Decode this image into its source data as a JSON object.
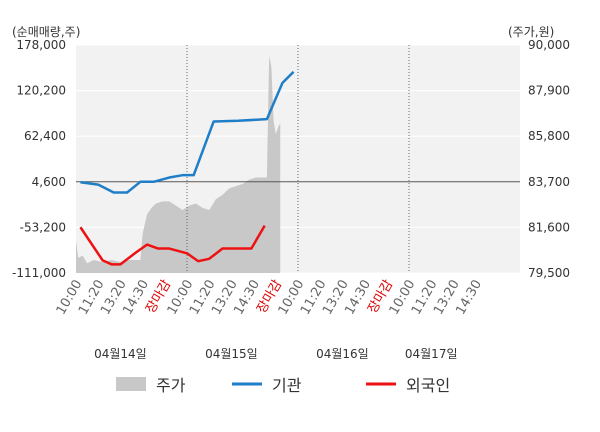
{
  "chart_data": {
    "type": "line",
    "left_axis_label": "(순매매량,주)",
    "right_axis_label": "(주가,원)",
    "left_ticks": [
      "178,000",
      "120,200",
      "62,400",
      "4,600",
      "-53,200",
      "-111,000"
    ],
    "left_range": [
      -111000,
      178000
    ],
    "right_ticks": [
      "90,000",
      "87,900",
      "85,800",
      "83,700",
      "81,600",
      "79,500"
    ],
    "right_range": [
      79500,
      90000
    ],
    "reference_line": {
      "y": 4600
    },
    "x_slots": 20,
    "x_ticks": [
      {
        "slot": 0,
        "label": "10:00",
        "color": "#666666"
      },
      {
        "slot": 1,
        "label": "11:20",
        "color": "#666666"
      },
      {
        "slot": 2,
        "label": "13:20",
        "color": "#666666"
      },
      {
        "slot": 3,
        "label": "14:30",
        "color": "#666666"
      },
      {
        "slot": 4,
        "label": "장마감",
        "color": "#dd0000"
      },
      {
        "slot": 5,
        "label": "10:00",
        "color": "#666666"
      },
      {
        "slot": 6,
        "label": "11:20",
        "color": "#666666"
      },
      {
        "slot": 7,
        "label": "13:20",
        "color": "#666666"
      },
      {
        "slot": 8,
        "label": "14:30",
        "color": "#666666"
      },
      {
        "slot": 9,
        "label": "장마감",
        "color": "#dd0000"
      },
      {
        "slot": 10,
        "label": "10:00",
        "color": "#666666"
      },
      {
        "slot": 11,
        "label": "11:20",
        "color": "#666666"
      },
      {
        "slot": 12,
        "label": "13:20",
        "color": "#666666"
      },
      {
        "slot": 13,
        "label": "14:30",
        "color": "#666666"
      },
      {
        "slot": 14,
        "label": "장마감",
        "color": "#dd0000"
      },
      {
        "slot": 15,
        "label": "10:00",
        "color": "#666666"
      },
      {
        "slot": 16,
        "label": "11:20",
        "color": "#666666"
      },
      {
        "slot": 17,
        "label": "13:20",
        "color": "#666666"
      },
      {
        "slot": 18,
        "label": "14:30",
        "color": "#666666"
      }
    ],
    "day_boundaries": [
      5,
      10,
      15
    ],
    "dates": [
      {
        "label": "04월14일",
        "slot": 2
      },
      {
        "label": "04월15일",
        "slot": 7
      },
      {
        "label": "04월16일",
        "slot": 12
      },
      {
        "label": "04월17일",
        "slot": 16
      }
    ],
    "series": [
      {
        "name": "기관",
        "color": "#1f7ec8",
        "axis": "left",
        "points": [
          [
            0.2,
            4000
          ],
          [
            1.0,
            1000
          ],
          [
            1.7,
            -9000
          ],
          [
            2.3,
            -9000
          ],
          [
            2.9,
            4600
          ],
          [
            3.5,
            4600
          ],
          [
            4.2,
            10000
          ],
          [
            4.8,
            13000
          ],
          [
            5.3,
            13000
          ],
          [
            6.2,
            81000
          ],
          [
            7.3,
            82000
          ],
          [
            8.6,
            84000
          ],
          [
            9.3,
            130000
          ],
          [
            9.8,
            144000
          ]
        ]
      },
      {
        "name": "외국인",
        "color": "#ee1111",
        "axis": "left",
        "points": [
          [
            0.2,
            -53000
          ],
          [
            1.2,
            -95000
          ],
          [
            1.6,
            -100000
          ],
          [
            2.0,
            -100000
          ],
          [
            2.7,
            -85000
          ],
          [
            3.2,
            -75000
          ],
          [
            3.7,
            -80000
          ],
          [
            4.2,
            -80000
          ],
          [
            5.0,
            -86000
          ],
          [
            5.5,
            -96000
          ],
          [
            6.0,
            -93000
          ],
          [
            6.6,
            -80000
          ],
          [
            7.5,
            -80000
          ],
          [
            7.9,
            -80000
          ],
          [
            8.5,
            -51000
          ]
        ]
      },
      {
        "name": "주가",
        "color": "#c8c8c8",
        "axis": "right",
        "type": "area",
        "points": [
          [
            0.0,
            81000
          ],
          [
            0.1,
            80200
          ],
          [
            0.3,
            80300
          ],
          [
            0.5,
            79950
          ],
          [
            0.8,
            80100
          ],
          [
            1.2,
            80000
          ],
          [
            1.6,
            80100
          ],
          [
            2.0,
            80000
          ],
          [
            2.4,
            80100
          ],
          [
            2.8,
            80100
          ],
          [
            2.9,
            80100
          ],
          [
            3.0,
            81300
          ],
          [
            3.2,
            82200
          ],
          [
            3.4,
            82500
          ],
          [
            3.6,
            82700
          ],
          [
            3.9,
            82800
          ],
          [
            4.2,
            82800
          ],
          [
            4.5,
            82600
          ],
          [
            4.8,
            82400
          ],
          [
            5.1,
            82600
          ],
          [
            5.4,
            82700
          ],
          [
            5.7,
            82500
          ],
          [
            6.0,
            82400
          ],
          [
            6.3,
            82900
          ],
          [
            6.6,
            83100
          ],
          [
            6.9,
            83400
          ],
          [
            7.2,
            83500
          ],
          [
            7.5,
            83600
          ],
          [
            7.8,
            83800
          ],
          [
            8.1,
            83900
          ],
          [
            8.4,
            83900
          ],
          [
            8.6,
            83900
          ],
          [
            8.7,
            89500
          ],
          [
            8.8,
            89000
          ],
          [
            8.9,
            86500
          ],
          [
            9.0,
            85900
          ],
          [
            9.1,
            86200
          ],
          [
            9.2,
            86400
          ]
        ]
      }
    ],
    "legend": [
      {
        "name": "주가",
        "color": "#c8c8c8",
        "kind": "box"
      },
      {
        "name": "기관",
        "color": "#1f7ec8",
        "kind": "line"
      },
      {
        "name": "외국인",
        "color": "#ee1111",
        "kind": "line"
      }
    ],
    "colors": {
      "plot_bg": "#f2f2f2",
      "grid": "#ffffff",
      "axis_text": "#333333",
      "reference_line": "#555555"
    }
  }
}
